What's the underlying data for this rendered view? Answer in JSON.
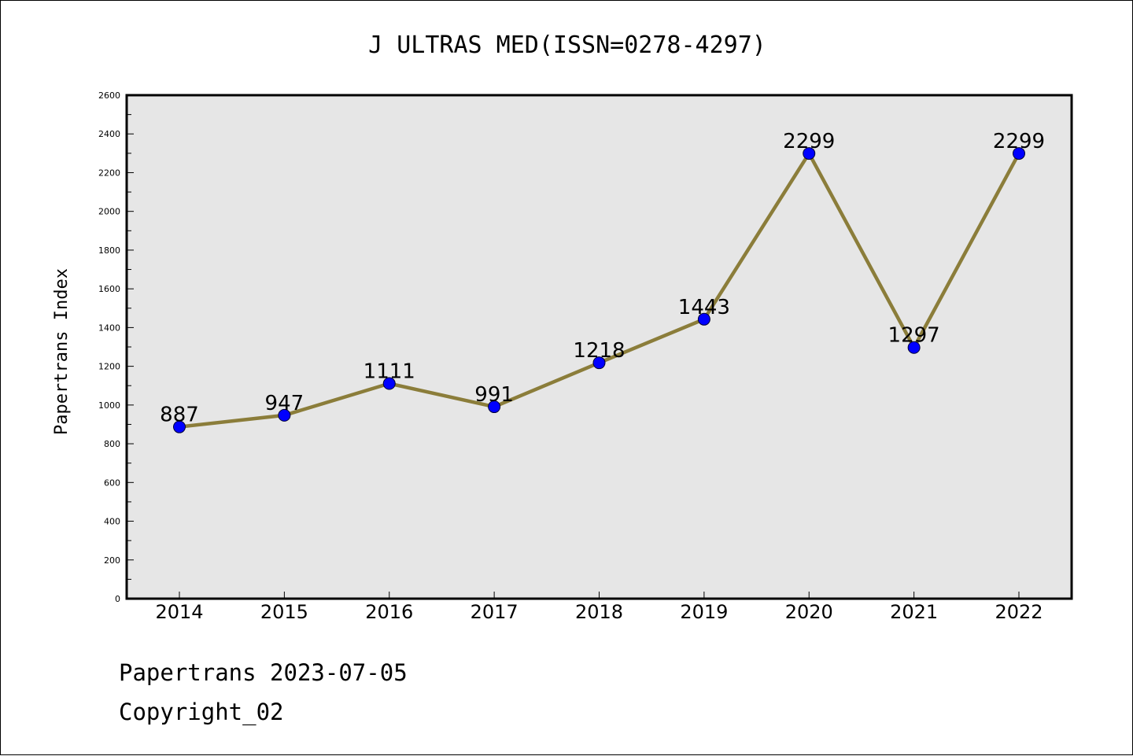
{
  "chart_data": {
    "type": "line",
    "title": "J ULTRAS MED(ISSN=0278-4297)",
    "xlabel": "",
    "ylabel": "Papertrans Index",
    "categories": [
      "2014",
      "2015",
      "2016",
      "2017",
      "2018",
      "2019",
      "2020",
      "2021",
      "2022"
    ],
    "values": [
      887,
      947,
      1111,
      991,
      1218,
      1443,
      2299,
      1297,
      2299
    ],
    "data_labels": [
      "887",
      "947",
      "1111",
      "991",
      "1218",
      "1443",
      "2299",
      "1297",
      "2299"
    ],
    "ylim": [
      0,
      2600
    ],
    "yticks": [
      0,
      200,
      400,
      600,
      800,
      1000,
      1200,
      1400,
      1600,
      1800,
      2000,
      2200,
      2400,
      2600
    ],
    "ytick_labels": [
      "0",
      "200",
      "400",
      "600",
      "800",
      "1000",
      "1200",
      "1400",
      "1600",
      "1800",
      "2000",
      "2200",
      "2400",
      "2600"
    ],
    "grid": false,
    "line_color": "#8b7d3a",
    "marker_color": "#0000ff",
    "plot_background": "#e6e6e6"
  },
  "footer": {
    "line1": "Papertrans 2023-07-05",
    "line2": "Copyright_02"
  }
}
